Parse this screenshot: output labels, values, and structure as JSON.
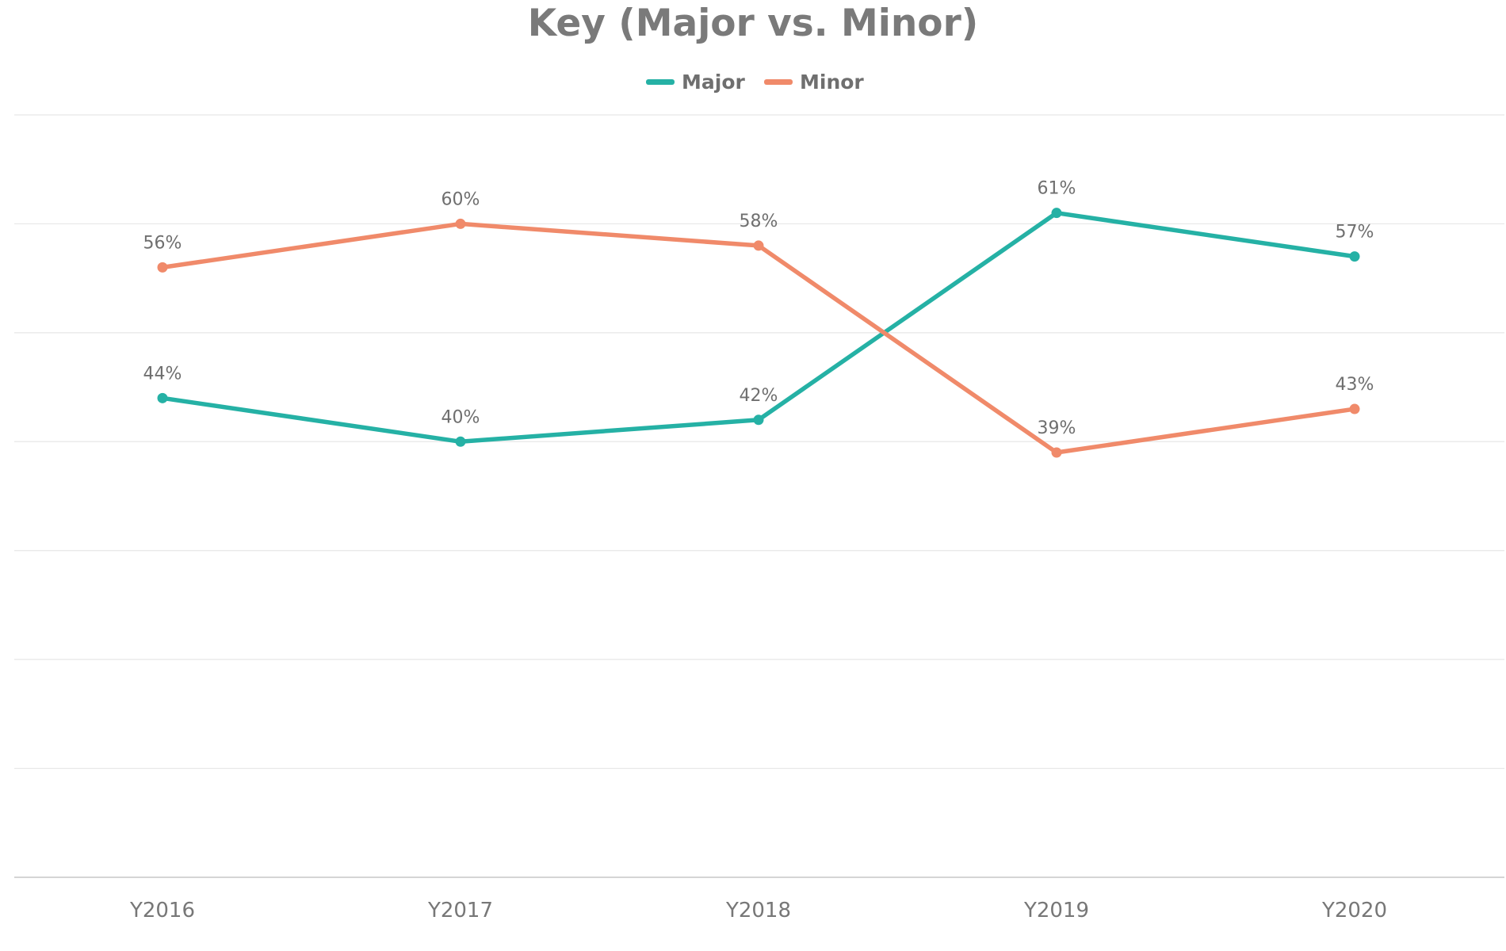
{
  "chart_data": {
    "type": "line",
    "title": "Key (Major vs. Minor)",
    "categories": [
      "Y2016",
      "Y2017",
      "Y2018",
      "Y2019",
      "Y2020"
    ],
    "series": [
      {
        "name": "Major",
        "values": [
          44,
          40,
          42,
          61,
          57
        ],
        "labels": [
          "44%",
          "40%",
          "42%",
          "61%",
          "57%"
        ],
        "color": "#25b1a5"
      },
      {
        "name": "Minor",
        "values": [
          56,
          60,
          58,
          39,
          43
        ],
        "labels": [
          "56%",
          "60%",
          "58%",
          "39%",
          "43%"
        ],
        "color": "#f08a6a"
      }
    ],
    "xlabel": "",
    "ylabel": "",
    "ylim": [
      0,
      70
    ],
    "y_tick_step": 10,
    "y_tick_labels_visible": false,
    "grid": true,
    "legend": "top-center",
    "colors": {
      "grid": "#e7e7e7",
      "axis": "#cfcfcf",
      "title": "#7a7a7a",
      "text": "#777777"
    }
  }
}
